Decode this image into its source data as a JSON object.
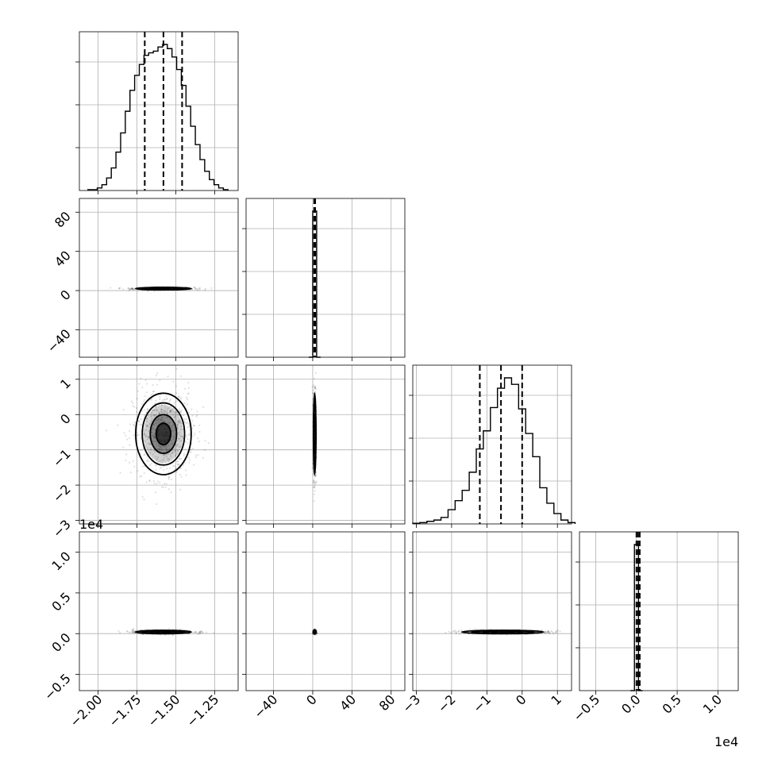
{
  "chart_data": {
    "type": "corner",
    "grid": true,
    "offset_labels": [
      "1e4",
      "1e4"
    ],
    "params": [
      {
        "range": [
          -2.12,
          -1.1
        ],
        "ticks": [
          -2.0,
          -1.75,
          -1.5,
          -1.25
        ],
        "tick_labels": [
          "−2.00",
          "−1.75",
          "−1.50",
          "−1.25"
        ],
        "quantiles": [
          -1.7,
          -1.58,
          -1.46
        ],
        "hist_bins": [
          -2.05,
          -2.02,
          -1.99,
          -1.96,
          -1.93,
          -1.9,
          -1.87,
          -1.84,
          -1.81,
          -1.78,
          -1.75,
          -1.72,
          -1.69,
          -1.66,
          -1.63,
          -1.6,
          -1.57,
          -1.54,
          -1.51,
          -1.48,
          -1.45,
          -1.42,
          -1.39,
          -1.36,
          -1.33,
          -1.3,
          -1.27,
          -1.24,
          -1.21,
          -1.18
        ],
        "hist_counts": [
          1,
          1,
          3,
          7,
          15,
          27,
          46,
          69,
          95,
          120,
          138,
          151,
          162,
          165,
          167,
          172,
          175,
          170,
          160,
          145,
          126,
          101,
          77,
          55,
          37,
          23,
          13,
          7,
          3,
          1
        ],
        "mean": -1.58,
        "sd": 0.085
      },
      {
        "range": [
          -68,
          94
        ],
        "ticks": [
          -40,
          0,
          40,
          80
        ],
        "tick_labels": [
          "−40",
          "0",
          "40",
          "80"
        ],
        "quantiles": [
          1.5,
          2.0,
          2.5
        ],
        "hist_bins": [
          -2,
          2,
          6
        ],
        "hist_counts": [
          0,
          100,
          0
        ],
        "mean": 2,
        "sd": 0.6
      },
      {
        "range": [
          -3.1,
          1.4
        ],
        "ticks": [
          -3,
          -2,
          -1,
          0,
          1
        ],
        "tick_labels": [
          "−3",
          "−2",
          "−1",
          "0",
          "1"
        ],
        "quantiles": [
          -1.2,
          -0.6,
          0.0
        ],
        "hist_bins": [
          -3.0,
          -2.8,
          -2.6,
          -2.4,
          -2.2,
          -2.0,
          -1.8,
          -1.6,
          -1.4,
          -1.2,
          -1.0,
          -0.8,
          -0.6,
          -0.4,
          -0.2,
          0.0,
          0.2,
          0.4,
          0.6,
          0.8,
          1.0,
          1.2,
          1.4
        ],
        "hist_counts": [
          0.5,
          1,
          2,
          3,
          5,
          11,
          18,
          26,
          40,
          58,
          72,
          90,
          105,
          113,
          108,
          89,
          70,
          52,
          28,
          16,
          8,
          3,
          1
        ],
        "mean": -0.55,
        "sd": 0.55
      },
      {
        "range": [
          -0.7,
          1.25
        ],
        "ticks": [
          -0.5,
          0.0,
          0.5,
          1.0
        ],
        "tick_labels": [
          "−0.5",
          "0.0",
          "0.5",
          "1.0"
        ],
        "quantiles": [
          0.0,
          0.02,
          0.04
        ],
        "hist_bins": [
          -0.05,
          0.0,
          0.05
        ],
        "hist_counts": [
          0,
          100,
          0
        ],
        "mean": 0.02,
        "sd": 0.01
      }
    ]
  }
}
